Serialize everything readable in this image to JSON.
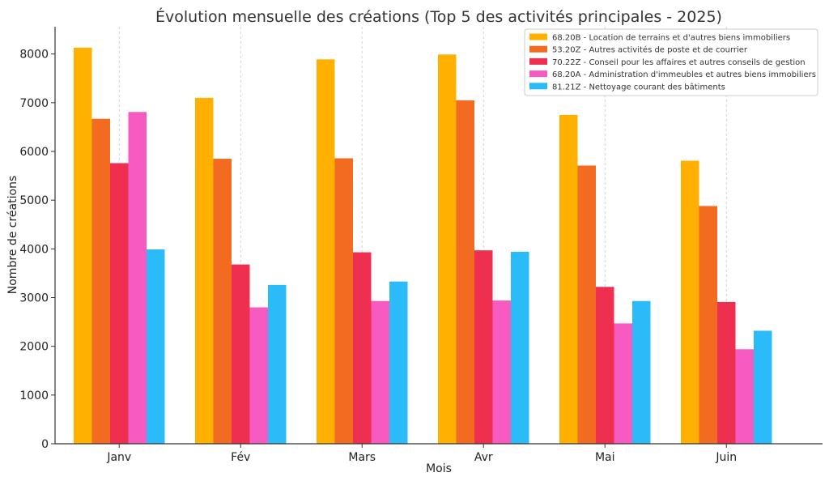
{
  "chart_data": {
    "type": "bar",
    "title": "Évolution mensuelle des créations (Top 5 des activités principales - 2025)",
    "xlabel": "Mois",
    "ylabel": "Nombre de créations",
    "categories": [
      "Janv",
      "Fév",
      "Mars",
      "Avr",
      "Mai",
      "Juin"
    ],
    "ylim": [
      0,
      8560
    ],
    "yticks": [
      "0",
      "1000",
      "2000",
      "3000",
      "4000",
      "5000",
      "6000",
      "7000",
      "8000"
    ],
    "grid": "x-dashed",
    "legend_position": "top-right",
    "series": [
      {
        "name": "68.20B - Location de terrains et d'autres biens immobiliers",
        "color": "#FFB000",
        "values": [
          8130,
          7100,
          7890,
          7990,
          6750,
          5810
        ]
      },
      {
        "name": "53.20Z - Autres activités de poste et de courrier",
        "color": "#F26B21",
        "values": [
          6670,
          5850,
          5860,
          7050,
          5710,
          4880
        ]
      },
      {
        "name": "70.22Z - Conseil pour les affaires et autres conseils de gestion",
        "color": "#EF2F4F",
        "values": [
          5760,
          3680,
          3930,
          3970,
          3220,
          2910
        ]
      },
      {
        "name": "68.20A - Administration d'immeubles et autres biens immobiliers",
        "color": "#F75BC1",
        "values": [
          6810,
          2800,
          2930,
          2940,
          2470,
          1940
        ]
      },
      {
        "name": "81.21Z - Nettoyage courant des bâtiments",
        "color": "#2BBBF8",
        "values": [
          3990,
          3260,
          3330,
          3940,
          2930,
          2320
        ]
      }
    ]
  }
}
